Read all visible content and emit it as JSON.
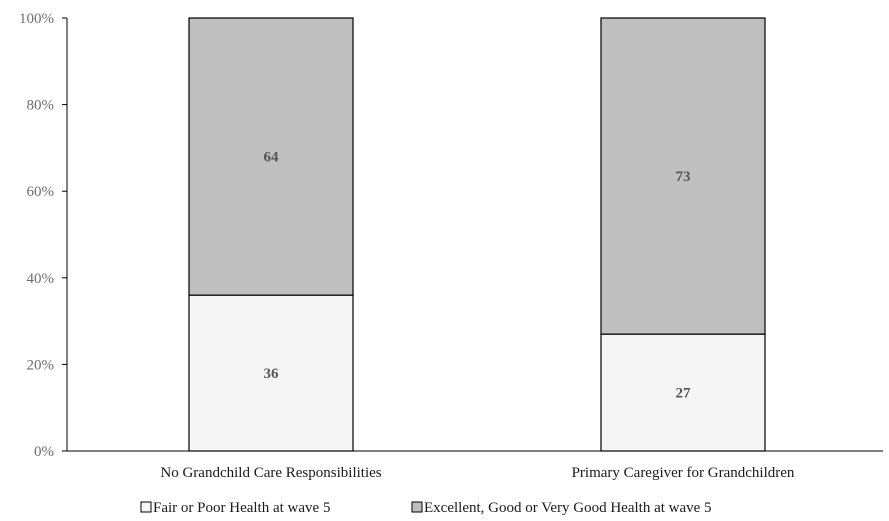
{
  "chart_data": {
    "type": "bar",
    "stacked": true,
    "categories": [
      "No Grandchild Care Responsibilities",
      "Primary Caregiver for Grandchildren"
    ],
    "series": [
      {
        "name": "Fair or Poor Health at wave 5",
        "values": [
          36,
          27
        ],
        "color": "#f4f5f4"
      },
      {
        "name": "Excellent, Good or Very Good Health at wave 5",
        "values": [
          64,
          73
        ],
        "color": "#bfbfbf"
      }
    ],
    "ylim": [
      0,
      100
    ],
    "yticks": [
      "0%",
      "20%",
      "40%",
      "60%",
      "80%",
      "100%"
    ],
    "grid": false,
    "legend": "bottom",
    "data_labels": true
  }
}
